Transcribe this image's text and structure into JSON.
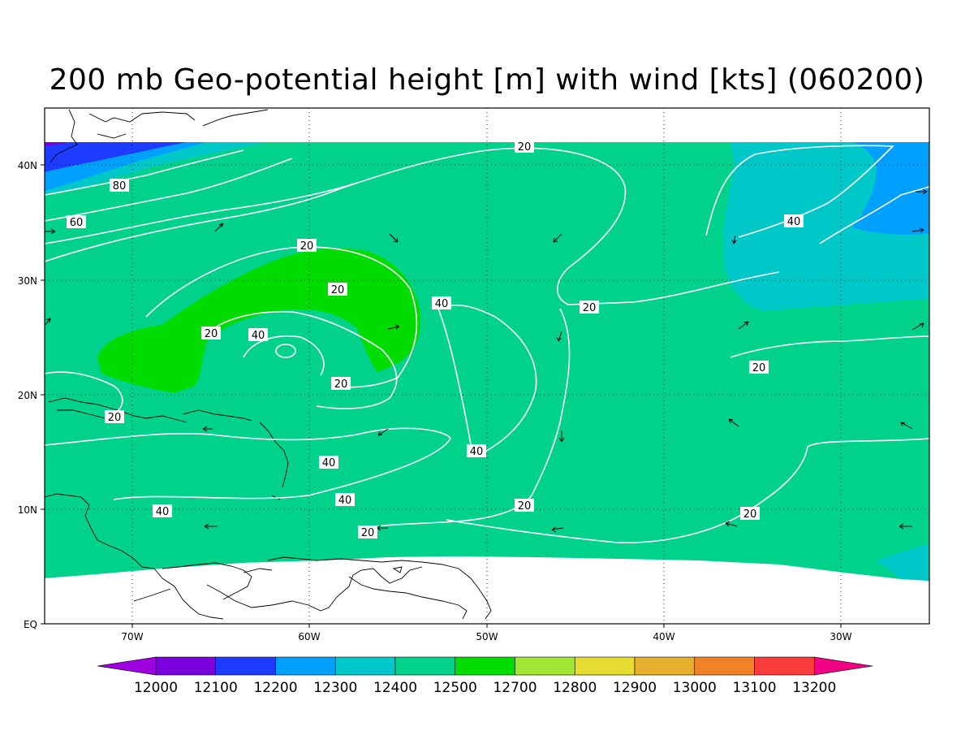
{
  "title": "200 mb Geo-potential height [m] with wind [kts] (060200)",
  "lat_labels": [
    "40N",
    "30N",
    "20N",
    "10N",
    "EQ"
  ],
  "lon_labels": [
    "70W",
    "60W",
    "50W",
    "40W",
    "30W"
  ],
  "contour_labels": [
    "20",
    "20",
    "20",
    "20",
    "20",
    "20",
    "20",
    "20",
    "20",
    "20",
    "20",
    "40",
    "40",
    "40",
    "40",
    "40",
    "40",
    "40",
    "60",
    "80"
  ],
  "colorbar": {
    "labels": [
      "12000",
      "12100",
      "12200",
      "12300",
      "12400",
      "12500",
      "12700",
      "12800",
      "12900",
      "13000",
      "13100",
      "13200"
    ],
    "colors": [
      "#9e00e0",
      "#7a00dc",
      "#1e3cff",
      "#00a0ff",
      "#00c8c8",
      "#00d28c",
      "#00dc00",
      "#a0e632",
      "#e6dc32",
      "#e6af2d",
      "#f08228",
      "#fa3c3c",
      "#f00082"
    ]
  }
}
